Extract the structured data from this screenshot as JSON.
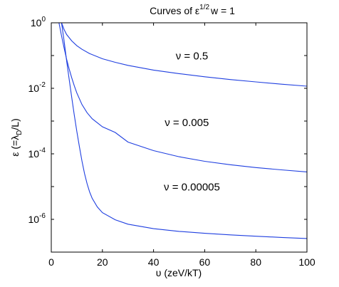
{
  "chart_data": {
    "type": "line",
    "title_base": "Curves of ε",
    "title_sup": "1/2",
    "title_tail": "w = 1",
    "xlabel": "υ (zeV/kT)",
    "ylabel_main": "ε (=λ",
    "ylabel_sub": "D",
    "ylabel_tail": "/L)",
    "xlim": [
      0,
      100
    ],
    "ylim": [
      1e-07,
      1
    ],
    "yscale": "log",
    "grid": false,
    "line_color": "#1f3fe0",
    "x_ticks": [
      {
        "value": 0,
        "label": "0"
      },
      {
        "value": 20,
        "label": "20"
      },
      {
        "value": 40,
        "label": "40"
      },
      {
        "value": 60,
        "label": "60"
      },
      {
        "value": 80,
        "label": "80"
      },
      {
        "value": 100,
        "label": "100"
      }
    ],
    "y_ticks": [
      {
        "value": 1,
        "base": "10",
        "exp": "0"
      },
      {
        "value": 0.01,
        "base": "10",
        "exp": "-2"
      },
      {
        "value": 0.0001,
        "base": "10",
        "exp": "-4"
      },
      {
        "value": 1e-06,
        "base": "10",
        "exp": "-6"
      }
    ],
    "series": [
      {
        "name": "ν = 0.5",
        "label_at": [
          55,
          0.075
        ],
        "points": [
          [
            4,
            1.0
          ],
          [
            5,
            0.62
          ],
          [
            6,
            0.44
          ],
          [
            8,
            0.28
          ],
          [
            10,
            0.2
          ],
          [
            12,
            0.155
          ],
          [
            15,
            0.115
          ],
          [
            20,
            0.08
          ],
          [
            25,
            0.062
          ],
          [
            30,
            0.05
          ],
          [
            40,
            0.036
          ],
          [
            50,
            0.028
          ],
          [
            60,
            0.0225
          ],
          [
            70,
            0.0185
          ],
          [
            80,
            0.0157
          ],
          [
            90,
            0.0134
          ],
          [
            100,
            0.0116
          ]
        ]
      },
      {
        "name": "ν = 0.005",
        "label_at": [
          53,
          0.0007
        ],
        "points": [
          [
            3,
            1.0
          ],
          [
            4,
            0.4
          ],
          [
            5,
            0.17
          ],
          [
            6,
            0.078
          ],
          [
            7,
            0.039
          ],
          [
            8,
            0.021
          ],
          [
            9,
            0.012
          ],
          [
            10,
            0.0072
          ],
          [
            12,
            0.0032
          ],
          [
            14,
            0.0018
          ],
          [
            16,
            0.00118
          ],
          [
            20,
            0.00067
          ],
          [
            25,
            0.00045
          ],
          [
            30,
            0.000228
          ],
          [
            40,
            0.000125
          ],
          [
            50,
            8.15e-05
          ],
          [
            60,
            5.9e-05
          ],
          [
            70,
            4.65e-05
          ],
          [
            80,
            3.8e-05
          ],
          [
            90,
            3.24e-05
          ],
          [
            100,
            2.8e-05
          ]
        ]
      },
      {
        "name": "ν = 0.00005",
        "label_at": [
          55,
          7.5e-06
        ],
        "points": [
          [
            4,
            1.0
          ],
          [
            5,
            0.28
          ],
          [
            6,
            0.07
          ],
          [
            7,
            0.019
          ],
          [
            8,
            0.0053
          ],
          [
            9,
            0.00152
          ],
          [
            10,
            0.00048
          ],
          [
            11,
            0.000165
          ],
          [
            12,
            6e-05
          ],
          [
            13,
            2.5e-05
          ],
          [
            14,
            1.22e-05
          ],
          [
            15,
            6.9e-06
          ],
          [
            16,
            4.4e-06
          ],
          [
            18,
            2.4e-06
          ],
          [
            20,
            1.6e-06
          ],
          [
            25,
            9.7e-07
          ],
          [
            30,
            7.1e-07
          ],
          [
            40,
            5.2e-07
          ],
          [
            50,
            4.3e-07
          ],
          [
            60,
            3.75e-07
          ],
          [
            70,
            3.35e-07
          ],
          [
            80,
            3.05e-07
          ],
          [
            90,
            2.8e-07
          ],
          [
            100,
            2.6e-07
          ]
        ]
      }
    ]
  }
}
